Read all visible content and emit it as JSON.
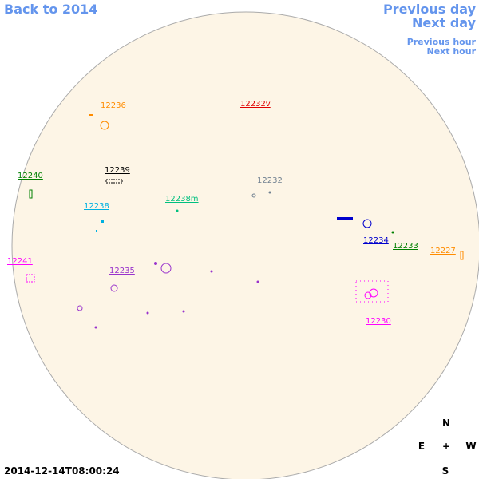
{
  "header": {
    "back_link": "Back to 2014"
  },
  "nav": {
    "previous_day": "Previous day",
    "next_day": "Next day",
    "previous_hour": "Previous hour",
    "next_hour": "Next hour"
  },
  "regions": [
    {
      "label": "12236"
    },
    {
      "label": "12232v"
    },
    {
      "label": "12240"
    },
    {
      "label": "12239"
    },
    {
      "label": "12232"
    },
    {
      "label": "12238m"
    },
    {
      "label": "12238"
    },
    {
      "label": "12241"
    },
    {
      "label": "12235"
    },
    {
      "label": "12234"
    },
    {
      "label": "12233"
    },
    {
      "label": "12227"
    },
    {
      "label": "12230"
    }
  ],
  "compass": {
    "north": "N",
    "east": "E",
    "center": "+",
    "west": "W",
    "south": "S"
  },
  "timestamp": "2014-12-14T08:00:24"
}
